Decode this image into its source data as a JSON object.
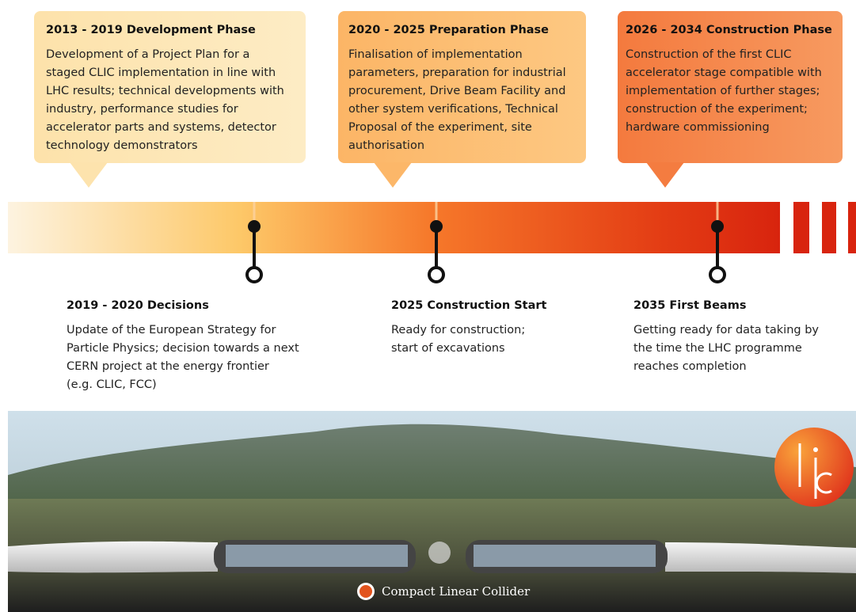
{
  "phases": [
    {
      "title": "2013 - 2019 Development Phase",
      "lines": [
        "Development of a Project Plan for a",
        "staged CLIC implementation in line with",
        "LHC results; technical developments with",
        "industry, performance studies for",
        "accelerator parts and systems, detector",
        "technology demonstrators"
      ]
    },
    {
      "title": "2020 - 2025 Preparation Phase",
      "lines": [
        "Finalisation of implementation",
        "parameters, preparation for industrial",
        "procurement, Drive Beam Facility and",
        "other system verifications, Technical",
        "Proposal of the experiment, site",
        "authorisation"
      ]
    },
    {
      "title": "2026 - 2034 Construction Phase",
      "lines": [
        "Construction of the first CLIC",
        "accelerator stage compatible with",
        "implementation of further stages;",
        "construction of the experiment;",
        "hardware commissioning"
      ]
    }
  ],
  "milestones": [
    {
      "title": "2019 - 2020 Decisions",
      "lines": [
        "Update of the European Strategy for",
        "Particle Physics; decision towards a next",
        "CERN project at the energy frontier",
        "(e.g. CLIC, FCC)"
      ]
    },
    {
      "title": "2025 Construction Start",
      "lines": [
        "Ready for construction;",
        "start of excavations"
      ]
    },
    {
      "title": "2035 First Beams",
      "lines": [
        "Getting ready for data taking by",
        "the time the LHC programme",
        "reaches completion"
      ]
    }
  ],
  "image": {
    "caption": "Compact Linear Collider"
  }
}
